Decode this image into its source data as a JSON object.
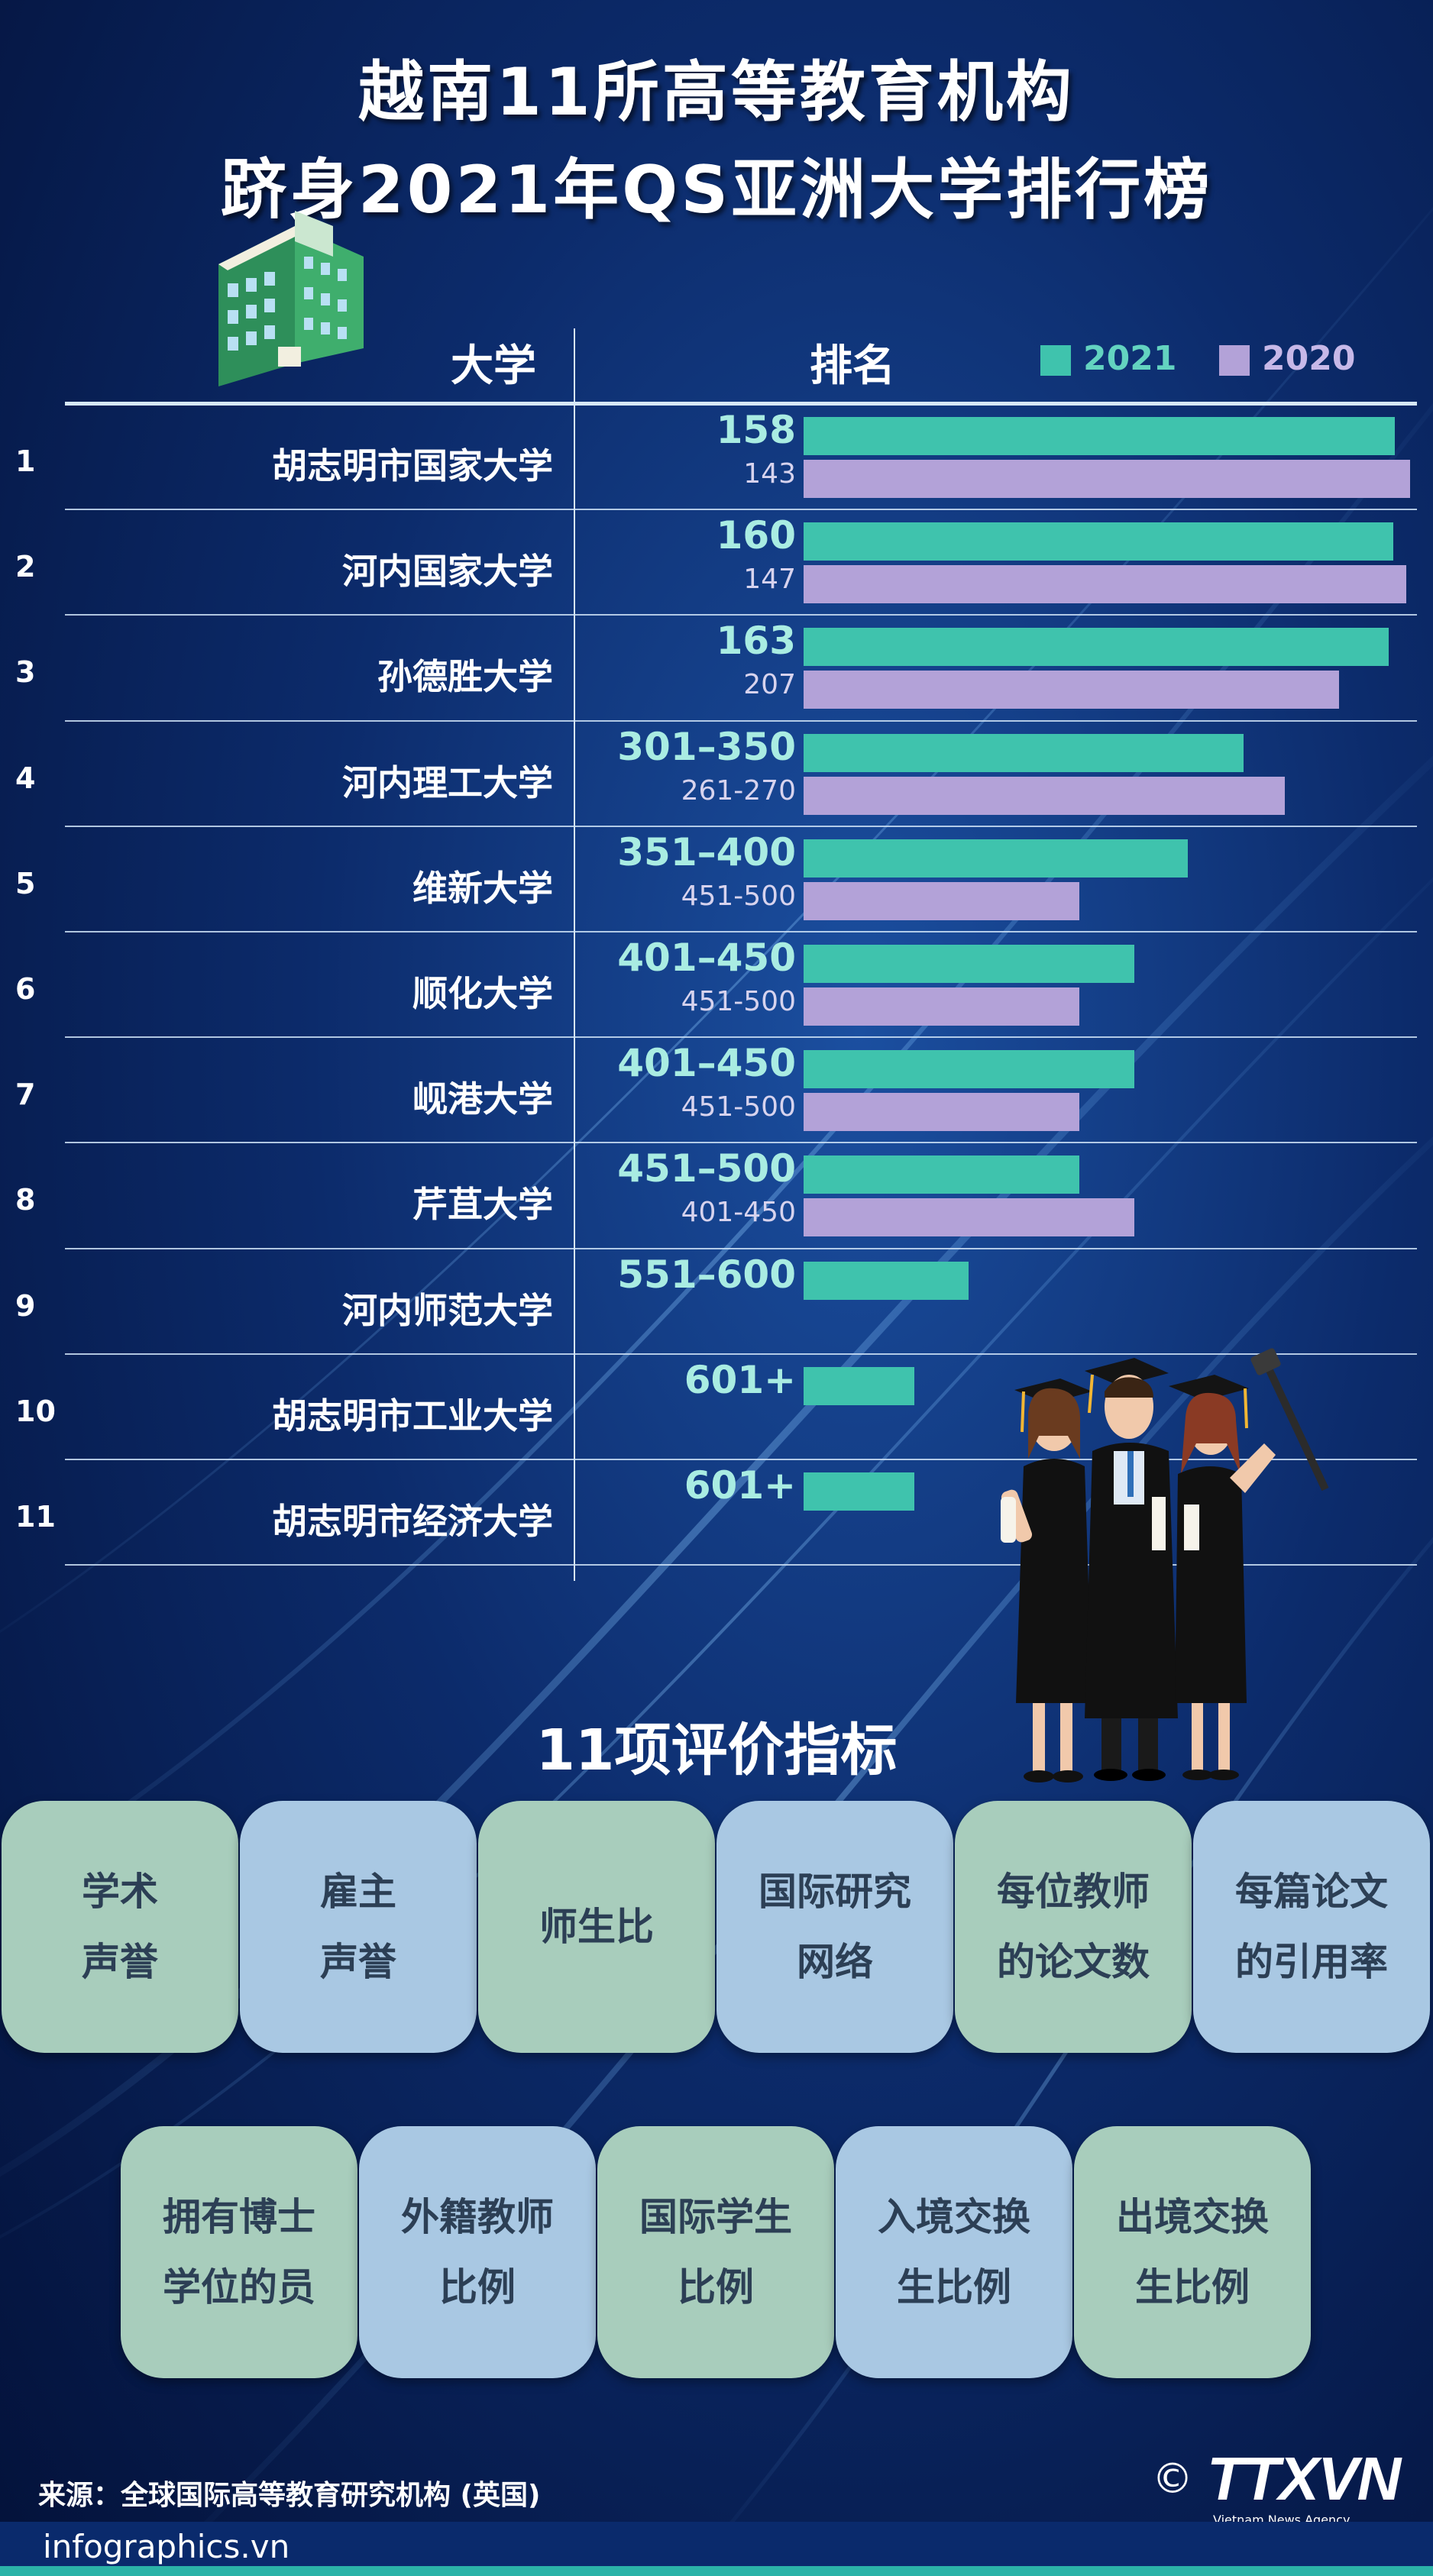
{
  "title": {
    "line1": "越南11所高等教育机构",
    "line2": "跻身2021年QS亚洲大学排行榜"
  },
  "table": {
    "col_university": "大学",
    "col_rank": "排名",
    "legend": [
      {
        "label": "2021",
        "color": "#3fc3ad"
      },
      {
        "label": "2020",
        "color": "#b3a2d8"
      }
    ]
  },
  "chart_data": {
    "type": "bar",
    "orientation": "horizontal",
    "categories": [
      "胡志明市国家大学",
      "河内国家大学",
      "孙德胜大学",
      "河内理工大学",
      "维新大学",
      "顺化大学",
      "岘港大学",
      "芹苴大学",
      "河内师范大学",
      "胡志明市工业大学",
      "胡志明市经济大学"
    ],
    "row_numbers": [
      "1",
      "2",
      "3",
      "4",
      "5",
      "6",
      "7",
      "8",
      "9",
      "10",
      "11"
    ],
    "series": [
      {
        "name": "2021",
        "labels": [
          "158",
          "160",
          "163",
          "301–350",
          "351–400",
          "401–450",
          "401–450",
          "451–500",
          "551–600",
          "601+",
          "601+"
        ]
      },
      {
        "name": "2020",
        "labels": [
          "143",
          "147",
          "207",
          "261-270",
          "451-500",
          "451-500",
          "451-500",
          "401-450",
          "",
          "",
          ""
        ]
      }
    ],
    "bar_fill_fraction": {
      "2021": [
        0.975,
        0.972,
        0.965,
        0.725,
        0.634,
        0.545,
        0.545,
        0.455,
        0.272,
        0.182,
        0.182
      ],
      "2020": [
        1.0,
        0.994,
        0.883,
        0.793,
        0.455,
        0.455,
        0.455,
        0.545,
        null,
        null,
        null
      ]
    },
    "legend_position": "top-right"
  },
  "criteria": {
    "title": "11项评价指标",
    "row1": [
      {
        "line1": "学术",
        "line2": "声誉",
        "style": "green"
      },
      {
        "line1": "雇主",
        "line2": "声誉",
        "style": "blue"
      },
      {
        "line1": "师生比",
        "line2": "",
        "style": "green"
      },
      {
        "line1": "国际研究",
        "line2": "网络",
        "style": "blue"
      },
      {
        "line1": "每位教师",
        "line2": "的论文数",
        "style": "green"
      },
      {
        "line1": "每篇论文",
        "line2": "的引用率",
        "style": "blue"
      }
    ],
    "row2": [
      {
        "line1": "拥有博士",
        "line2": "学位的员",
        "style": "green"
      },
      {
        "line1": "外籍教师",
        "line2": "比例",
        "style": "blue"
      },
      {
        "line1": "国际学生",
        "line2": "比例",
        "style": "green"
      },
      {
        "line1": "入境交换",
        "line2": "生比例",
        "style": "blue"
      },
      {
        "line1": "出境交换",
        "line2": "生比例",
        "style": "green"
      }
    ]
  },
  "footer": {
    "source": "来源：全球国际高等教育研究机构 (英国)",
    "website": "infographics.vn",
    "copyright": "©",
    "brand": "TTXVN",
    "brand_sub": "Vietnam News Agency"
  },
  "colors": {
    "bar_2021": "#3fc3ad",
    "bar_2020": "#b3a2d8",
    "card_green": "#a8cdbc",
    "card_blue": "#a9c8e3",
    "background": "#0c2b6b"
  }
}
